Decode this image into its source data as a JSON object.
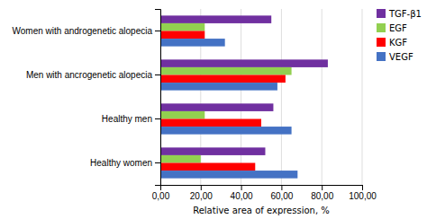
{
  "chart_data": {
    "type": "bar",
    "orientation": "horizontal",
    "categories": [
      "Healthy women",
      "Healthy men",
      "Men with ancrogenetic alopecia",
      "Women with androgenetic alopecia"
    ],
    "series": [
      {
        "name": "TGF-β1",
        "color": "#7030A0",
        "values": [
          52,
          56,
          83,
          55
        ]
      },
      {
        "name": "EGF",
        "color": "#92D050",
        "values": [
          20,
          22,
          65,
          22
        ]
      },
      {
        "name": "KGF",
        "color": "#FF0000",
        "values": [
          47,
          50,
          62,
          22
        ]
      },
      {
        "name": "VEGF",
        "color": "#4472C4",
        "values": [
          68,
          65,
          58,
          32
        ]
      }
    ],
    "xlabel": "Relative area of expression, %",
    "xlim": [
      0,
      100
    ],
    "xticks": [
      {
        "value": 0,
        "label": "0,00"
      },
      {
        "value": 20,
        "label": "20,00"
      },
      {
        "value": 40,
        "label": "40,00"
      },
      {
        "value": 60,
        "label": "60,00"
      },
      {
        "value": 80,
        "label": "80,00"
      },
      {
        "value": 100,
        "label": "100,00"
      }
    ],
    "grid": true,
    "legend": "right"
  }
}
